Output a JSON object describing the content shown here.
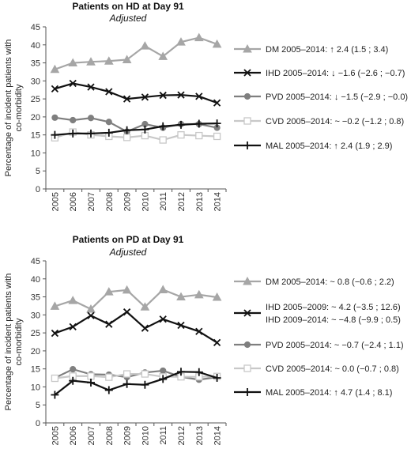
{
  "chart_data": [
    {
      "type": "line",
      "title": "Patients on HD at Day 91",
      "subtitle": "Adjusted",
      "xlabel": "",
      "ylabel_lines": [
        "Percentage of incident patients with",
        "co-morbidity"
      ],
      "ylim": [
        0,
        45
      ],
      "yticks": [
        "0",
        "5",
        "10",
        "15",
        "20",
        "25",
        "30",
        "35",
        "40",
        "45"
      ],
      "categories": [
        "2005",
        "2006",
        "2007",
        "2008",
        "2009",
        "2010",
        "2011",
        "2012",
        "2013",
        "2014"
      ],
      "grid": false,
      "legend_position": "right",
      "series": [
        {
          "name": "DM",
          "marker": "triangle",
          "color": "#a6a6a6",
          "values": [
            33.2,
            35.0,
            35.3,
            35.5,
            35.9,
            39.7,
            36.8,
            40.8,
            42.0,
            40.2
          ],
          "legend_text": [
            "DM  2005–2014:  ↑ 2.4 (1.5 ; 3.4)"
          ]
        },
        {
          "name": "IHD",
          "marker": "x",
          "color": "#111111",
          "values": [
            27.8,
            29.3,
            28.3,
            27.0,
            25.0,
            25.5,
            26.0,
            26.1,
            25.7,
            23.9
          ],
          "legend_text": [
            "IHD  2005–2014:  ↓ −1.6 (−2.6 ; −0.7)"
          ]
        },
        {
          "name": "PVD",
          "marker": "circle",
          "color": "#7f7f7f",
          "values": [
            19.8,
            19.1,
            19.7,
            18.6,
            15.9,
            18.0,
            17.0,
            18.0,
            18.0,
            17.0
          ],
          "legend_text": [
            "PVD  2005–2014:  ↓ −1.5 (−2.9 ; −0.0)"
          ]
        },
        {
          "name": "CVD",
          "marker": "square-open",
          "color": "#c8c8c8",
          "values": [
            14.2,
            15.8,
            15.0,
            14.6,
            14.3,
            14.8,
            13.6,
            15.0,
            14.8,
            14.6
          ],
          "legend_text": [
            "CVD  2005–2014:  ~ −0.2 (−1.2 ; 0.8)"
          ]
        },
        {
          "name": "MAL",
          "marker": "plus",
          "color": "#111111",
          "values": [
            15.0,
            15.4,
            15.4,
            15.6,
            16.3,
            16.5,
            17.4,
            17.8,
            18.1,
            18.2
          ],
          "legend_text": [
            "MAL  2005–2014:  ↑ 2.4 (1.9 ; 2.9)"
          ]
        }
      ]
    },
    {
      "type": "line",
      "title": "Patients on PD at Day 91",
      "subtitle": "Adjusted",
      "xlabel": "",
      "ylabel_lines": [
        "Percentage of incident patients with",
        "co-morbidity"
      ],
      "ylim": [
        0,
        45
      ],
      "yticks": [
        "0",
        "5",
        "10",
        "15",
        "20",
        "25",
        "30",
        "35",
        "40",
        "45"
      ],
      "categories": [
        "2005",
        "2006",
        "2007",
        "2008",
        "2009",
        "2010",
        "2011",
        "2012",
        "2013",
        "2014"
      ],
      "grid": false,
      "legend_position": "right",
      "series": [
        {
          "name": "DM",
          "marker": "triangle",
          "color": "#a6a6a6",
          "values": [
            32.4,
            34.0,
            31.6,
            36.4,
            36.9,
            32.2,
            37.0,
            35.0,
            35.6,
            34.9
          ],
          "legend_text": [
            "DM  2005–2014:  ~ 0.8 (−0.6 ; 2.2)"
          ]
        },
        {
          "name": "IHD",
          "marker": "x",
          "color": "#111111",
          "values": [
            24.9,
            26.7,
            29.8,
            27.4,
            30.8,
            26.3,
            28.8,
            27.1,
            25.4,
            22.3
          ],
          "legend_text": [
            "IHD  2005–2009:  ~ 4.2 (−3.5 ; 12.6)",
            "IHD  2009–2014:  ~ −4.8 (−9.9 ; 0.5)"
          ]
        },
        {
          "name": "PVD",
          "marker": "circle",
          "color": "#7f7f7f",
          "values": [
            12.5,
            14.9,
            13.5,
            13.4,
            12.7,
            14.0,
            14.5,
            12.8,
            12.0,
            12.7
          ],
          "legend_text": [
            "PVD  2005–2014:  ~ −0.7 (−2.4 ; 1.1)"
          ]
        },
        {
          "name": "CVD",
          "marker": "square-open",
          "color": "#c8c8c8",
          "values": [
            12.4,
            13.0,
            13.0,
            12.7,
            13.6,
            13.6,
            12.8,
            12.8,
            12.8,
            12.9
          ],
          "legend_text": [
            "CVD  2005–2014:  ~ 0.0 (−0.7 ; 0.8)"
          ]
        },
        {
          "name": "MAL",
          "marker": "plus",
          "color": "#111111",
          "values": [
            7.8,
            11.7,
            11.2,
            9.1,
            10.8,
            10.6,
            12.2,
            14.2,
            14.1,
            12.5
          ],
          "legend_text": [
            "MAL  2005–2014:  ↑ 4.7 (1.4 ; 8.1)"
          ]
        }
      ]
    }
  ]
}
